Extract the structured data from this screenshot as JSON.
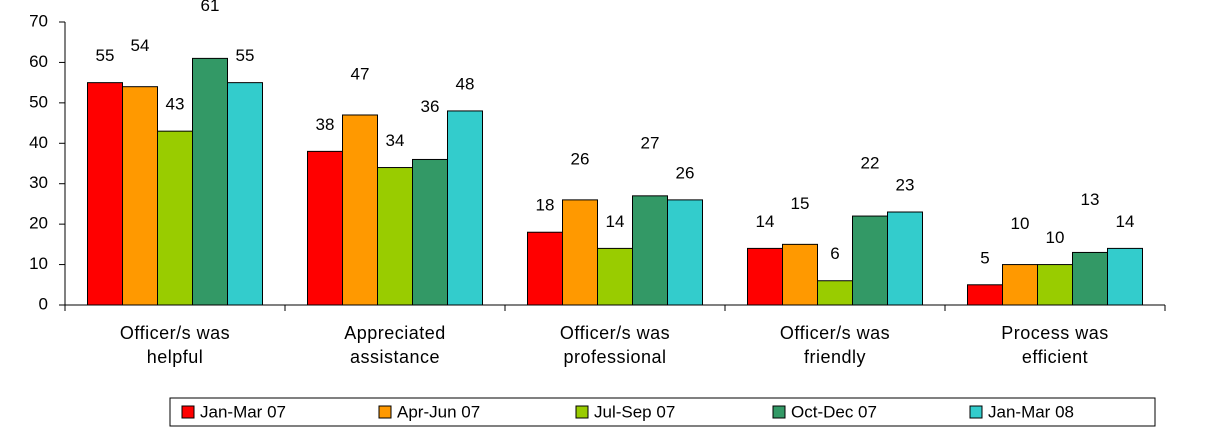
{
  "chart_data": {
    "type": "bar",
    "categories": [
      "Officer/s was\nhelpful",
      "Appreciated\nassistance",
      "Officer/s was\nprofessional",
      "Officer/s was\nfriendly",
      "Process was\nefficient"
    ],
    "series": [
      {
        "name": "Jan-Mar 07",
        "color": "#ff0000",
        "values": [
          55,
          38,
          18,
          14,
          5
        ]
      },
      {
        "name": "Apr-Jun 07",
        "color": "#ff9900",
        "values": [
          54,
          47,
          26,
          15,
          10
        ]
      },
      {
        "name": "Jul-Sep 07",
        "color": "#99cc00",
        "values": [
          43,
          34,
          14,
          6,
          10
        ]
      },
      {
        "name": "Oct-Dec 07",
        "color": "#339966",
        "values": [
          61,
          36,
          27,
          22,
          13
        ]
      },
      {
        "name": "Jan-Mar 08",
        "color": "#33cccc",
        "values": [
          55,
          48,
          26,
          23,
          14
        ]
      }
    ],
    "ylim": [
      0,
      70
    ],
    "yticks": [
      0,
      10,
      20,
      30,
      40,
      50,
      60,
      70
    ],
    "legend": "bottom"
  }
}
